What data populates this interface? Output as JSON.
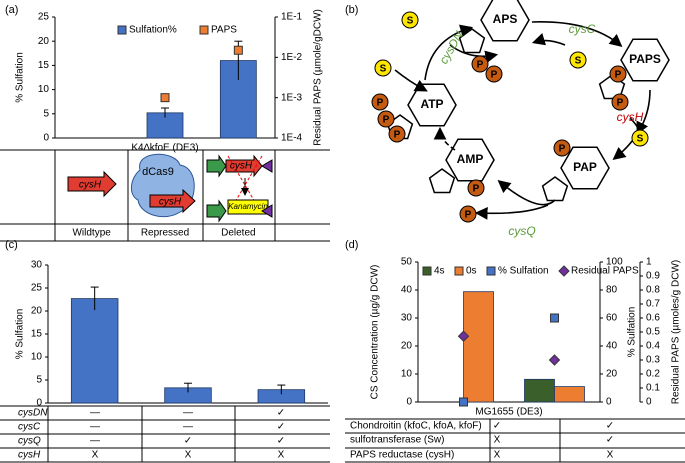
{
  "panels": {
    "a": "(a)",
    "b": "(b)",
    "c": "(c)",
    "d": "(d)"
  },
  "diagram": {
    "nodes": [
      "APS",
      "PAPS",
      "PAP",
      "AMP",
      "ATP"
    ],
    "enzymes": [
      "cysDN",
      "cysC",
      "cysH",
      "cysQ"
    ],
    "phosphate": "P",
    "sulfur": "S"
  },
  "chart_data": [
    {
      "type": "bar",
      "ylabel": "% Sulfation",
      "y2label": "Residual PAPS (µmole/gDCW)",
      "xlabel": "K4∆kfoE (DE3)",
      "categories": [
        "Wildtype",
        "Repressed",
        "Deleted"
      ],
      "series": [
        {
          "name": "Sulfation%",
          "color": "#4472c4",
          "values": [
            0,
            5.2,
            16
          ],
          "errors": [
            null,
            1,
            4
          ]
        },
        {
          "name": "PAPS",
          "color": "#ed7d31",
          "axis": "y2",
          "marker": "square",
          "values": [
            null,
            0.001,
            0.015
          ]
        }
      ],
      "ylim": [
        0,
        25
      ],
      "yticks": [
        0,
        5,
        10,
        15,
        20,
        25
      ],
      "y2lim": [
        0.0001,
        0.1
      ],
      "y2log": true,
      "y2ticks": [
        {
          "value": 0.0001,
          "label": "1E-4"
        },
        {
          "value": 0.001,
          "label": "1E-3"
        },
        {
          "value": 0.01,
          "label": "1E-2"
        },
        {
          "value": 0.1,
          "label": "1E-1"
        }
      ],
      "schematic": {
        "gene": "cysH",
        "repressor": "dCas9",
        "marker": "Kanamycin"
      }
    },
    {
      "type": "bar",
      "ylabel": "% Sulfation",
      "categories": [
        null,
        null,
        null
      ],
      "values": [
        22.7,
        3.3,
        2.9
      ],
      "errors": [
        2.5,
        1,
        1
      ],
      "color": "#4472c4",
      "ylim": [
        0,
        30
      ],
      "yticks": [
        0,
        5,
        10,
        15,
        20,
        25,
        30
      ],
      "table": {
        "rows": [
          {
            "label": "cysDN",
            "cells": [
              "—",
              "—",
              "✓"
            ]
          },
          {
            "label": "cysC",
            "cells": [
              "—",
              "—",
              "✓"
            ]
          },
          {
            "label": "cysQ",
            "cells": [
              "—",
              "✓",
              "✓"
            ]
          },
          {
            "label": "cysH",
            "cells": [
              "X",
              "X",
              "X"
            ]
          }
        ]
      }
    },
    {
      "type": "bar",
      "ylabel": "CS Concentration (µg/g DCW)",
      "y2label": "% Sulfation",
      "y3label": "Residual PAPS (µmoles/g DCW)",
      "xlabel": "MG1655 (DE3)",
      "categories": [
        null,
        null
      ],
      "series": [
        {
          "name": "4s",
          "color": "#3a5f2a",
          "values": [
            0,
            8.1
          ]
        },
        {
          "name": "0s",
          "color": "#ed7d31",
          "values": [
            39.4,
            5.5
          ]
        },
        {
          "name": "% Sulfation",
          "color": "#4472c4",
          "axis": "y2",
          "marker": "square",
          "values": [
            0,
            60
          ]
        },
        {
          "name": "Residual PAPS",
          "color": "#7030a0",
          "axis": "y3",
          "marker": "diamond",
          "values": [
            0.47,
            0.3
          ]
        }
      ],
      "ylim": [
        0,
        50
      ],
      "yticks": [
        0,
        10,
        20,
        30,
        40,
        50
      ],
      "y2lim": [
        0,
        100
      ],
      "y2ticks": [
        0,
        20,
        40,
        60,
        80,
        100
      ],
      "y3lim": [
        0,
        1
      ],
      "y3ticks": [
        0,
        0.1,
        0.2,
        0.3,
        0.4,
        0.5,
        0.6,
        0.7,
        0.8,
        0.9,
        1
      ],
      "table": {
        "rows": [
          {
            "label": "Chondroitin (kfoC, kfoA, kfoF)",
            "cells": [
              "✓",
              "✓"
            ]
          },
          {
            "label": "sulfotransferase (Sw)",
            "cells": [
              "X",
              "✓"
            ]
          },
          {
            "label": "PAPS reductase (cysH)",
            "cells": [
              "X",
              "X"
            ]
          }
        ]
      }
    }
  ]
}
